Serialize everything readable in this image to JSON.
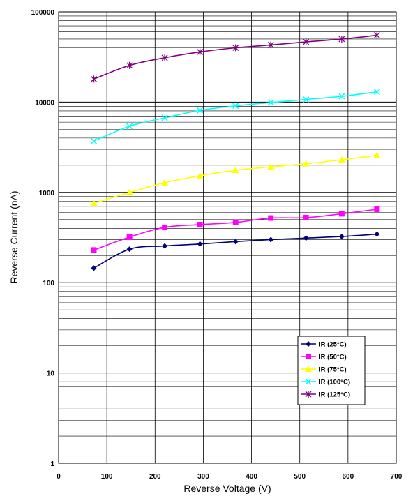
{
  "chart_data": {
    "type": "line",
    "xlabel": "Reverse Voltage (V)",
    "ylabel": "Reverse Current (nA)",
    "xlim": [
      0,
      700
    ],
    "ylim": [
      1,
      100000
    ],
    "yscale": "log",
    "grid": true,
    "legend_position": "bottom-right",
    "x_ticks": [
      "0",
      "100",
      "200",
      "300",
      "400",
      "500",
      "600",
      "700"
    ],
    "y_ticks": [
      "1",
      "10",
      "100",
      "1000",
      "10000",
      "100000"
    ],
    "x": [
      73,
      147,
      220,
      293,
      367,
      440,
      513,
      587,
      660
    ],
    "series": [
      {
        "name": "IR (25°C)",
        "color": "#000080",
        "marker": "diamond",
        "values": [
          145,
          235,
          255,
          268,
          285,
          300,
          312,
          325,
          345
        ]
      },
      {
        "name": "IR (50°C)",
        "color": "#ff00ff",
        "marker": "square",
        "values": [
          230,
          320,
          410,
          440,
          465,
          520,
          525,
          580,
          650
        ]
      },
      {
        "name": "IR (75°C)",
        "color": "#ffff00",
        "marker": "triangle",
        "values": [
          760,
          1000,
          1280,
          1530,
          1760,
          1920,
          2080,
          2300,
          2580
        ]
      },
      {
        "name": "IR (100°C)",
        "color": "#00ffff",
        "marker": "x",
        "values": [
          3700,
          5400,
          6700,
          8100,
          9100,
          9900,
          10700,
          11600,
          13000
        ]
      },
      {
        "name": "IR (125°C)",
        "color": "#800080",
        "marker": "star",
        "values": [
          18000,
          25500,
          31000,
          36000,
          40000,
          43000,
          46500,
          50000,
          55000
        ]
      }
    ]
  }
}
